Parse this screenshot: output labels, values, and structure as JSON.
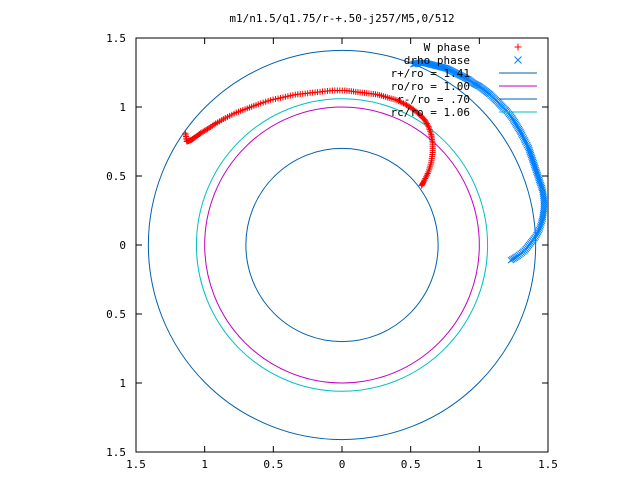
{
  "chart_data": {
    "type": "scatter",
    "title": "m1/n1.5/q1.75/r-+.50-j257/M5,0/512",
    "xlabel": "",
    "ylabel": "",
    "xlim": [
      -1.5,
      1.5
    ],
    "ylim": [
      -1.5,
      1.5
    ],
    "x_ticks": [
      -1.5,
      -1,
      -0.5,
      0,
      0.5,
      1,
      1.5
    ],
    "y_ticks": [
      -1.5,
      -1,
      -0.5,
      0,
      0.5,
      1,
      1.5
    ],
    "x_tick_labels": [
      "1.5",
      "1",
      "0.5",
      "0",
      "0.5",
      "1",
      "1.5"
    ],
    "y_tick_labels": [
      "1.5",
      "1",
      "0.5",
      "0",
      "0.5",
      "1",
      "1.5"
    ],
    "grid": false,
    "legend_position": "top-right",
    "legend": [
      {
        "label": "W phase",
        "marker": "+",
        "color": "#ff0000"
      },
      {
        "label": "drho phase",
        "marker": "x",
        "color": "#0080ff"
      },
      {
        "label": "r+/ro = 1.41",
        "marker": "line",
        "color": "#0060ad"
      },
      {
        "label": "ro/ro = 1.00",
        "marker": "line",
        "color": "#c000c0"
      },
      {
        "label": "r-/ro = .70",
        "marker": "line",
        "color": "#0060ad"
      },
      {
        "label": "rc/ro = 1.06",
        "marker": "line",
        "color": "#00c0c0"
      }
    ],
    "circles": [
      {
        "name": "r+/ro = 1.41",
        "radius": 1.41,
        "color": "#0060ad"
      },
      {
        "name": "ro/ro = 1.00",
        "radius": 1.0,
        "color": "#c000c0"
      },
      {
        "name": "r-/ro = .70",
        "radius": 0.7,
        "color": "#0060ad"
      },
      {
        "name": "rc/ro = 1.06",
        "radius": 1.06,
        "color": "#00c0c0"
      }
    ],
    "series": [
      {
        "name": "W phase",
        "marker": "+",
        "color": "#ff0000",
        "x": [
          -1.14,
          -1.13,
          -1.1,
          -1.07,
          -1.03,
          -0.98,
          -0.92,
          -0.85,
          -0.77,
          -0.69,
          -0.61,
          -0.52,
          -0.43,
          -0.34,
          -0.25,
          -0.16,
          -0.07,
          0.02,
          0.1,
          0.18,
          0.26,
          0.33,
          0.4,
          0.46,
          0.51,
          0.56,
          0.6,
          0.63,
          0.65,
          0.66,
          0.66,
          0.65,
          0.63,
          0.6,
          0.58
        ],
        "y": [
          0.81,
          0.75,
          0.76,
          0.78,
          0.81,
          0.84,
          0.88,
          0.92,
          0.96,
          0.99,
          1.02,
          1.05,
          1.07,
          1.09,
          1.1,
          1.11,
          1.12,
          1.12,
          1.11,
          1.1,
          1.09,
          1.07,
          1.05,
          1.02,
          0.99,
          0.95,
          0.91,
          0.86,
          0.8,
          0.74,
          0.67,
          0.6,
          0.53,
          0.47,
          0.43
        ]
      },
      {
        "name": "drho phase",
        "marker": "x",
        "color": "#0080ff",
        "x": [
          0.52,
          0.56,
          0.6,
          0.64,
          0.68,
          0.72,
          0.76,
          0.8,
          0.84,
          0.88,
          0.92,
          0.96,
          1.0,
          1.04,
          1.08,
          1.12,
          1.16,
          1.2,
          1.24,
          1.27,
          1.3,
          1.33,
          1.36,
          1.38,
          1.4,
          1.42,
          1.44,
          1.46,
          1.47,
          1.47,
          1.46,
          1.44,
          1.41,
          1.37,
          1.33,
          1.28,
          1.23
        ],
        "y": [
          1.31,
          1.32,
          1.32,
          1.31,
          1.3,
          1.29,
          1.28,
          1.26,
          1.24,
          1.22,
          1.2,
          1.17,
          1.15,
          1.12,
          1.09,
          1.05,
          1.01,
          0.97,
          0.92,
          0.87,
          0.82,
          0.76,
          0.7,
          0.64,
          0.58,
          0.52,
          0.46,
          0.4,
          0.33,
          0.26,
          0.19,
          0.12,
          0.06,
          0.01,
          -0.04,
          -0.08,
          -0.11
        ]
      }
    ]
  }
}
